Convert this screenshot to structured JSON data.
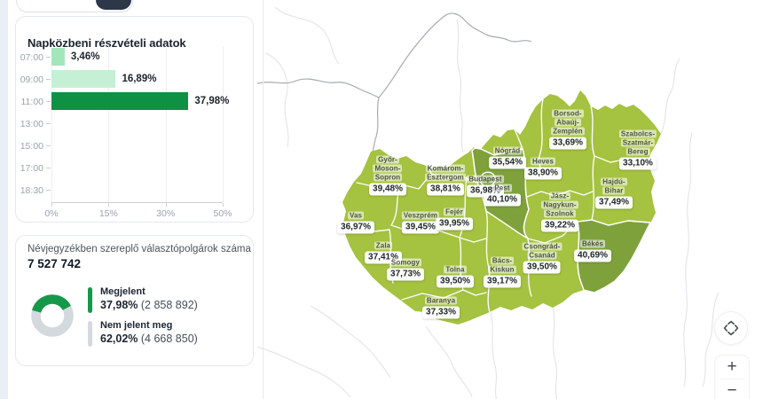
{
  "colors": {
    "accent_green": "#16984a",
    "donut_gray": "#d4d9dd",
    "map_county": "#a5c240",
    "map_county_dark": "#7ea13c",
    "map_border": "#ffffff"
  },
  "turnout_card": {
    "title": "Napközbeni részvételi adatok",
    "chart_data": {
      "type": "bar",
      "orientation": "horizontal",
      "title": "Napközbeni részvételi adatok",
      "categories": [
        "07:00",
        "09:00",
        "11:00",
        "13:00",
        "15:00",
        "17:00",
        "18:30"
      ],
      "values": [
        3.46,
        16.89,
        37.98,
        null,
        null,
        null,
        null
      ],
      "value_labels": [
        "3,46%",
        "16,89%",
        "37,98%",
        "",
        "",
        "",
        ""
      ],
      "bar_colors": [
        "#a3e6bc",
        "#c5f0d6",
        "#0e9144"
      ],
      "x_ticks": [
        "0%",
        "15%",
        "30%",
        "50%"
      ],
      "x_tick_values": [
        0,
        15,
        30,
        50
      ],
      "xlim": [
        0,
        50
      ],
      "grid": true
    }
  },
  "voters_card": {
    "title": "Névjegyzékben szereplő választópolgárok száma",
    "total": "7 527 742",
    "donut": {
      "type": "pie",
      "megjelent_pct": 37.98,
      "nem_jelent_meg_pct": 62.02
    },
    "legend": [
      {
        "label": "Megjelent",
        "pct": "37,98%",
        "count": "(2 858 892)",
        "color": "#16984a"
      },
      {
        "label": "Nem jelent meg",
        "pct": "62,02%",
        "count": "(4 668 850)",
        "color": "#d4d9dd"
      }
    ]
  },
  "map": {
    "type": "choropleth",
    "counties": [
      {
        "name": "Győr-Moson-Sopron",
        "name_lines": [
          "Győr-",
          "Moson-",
          "Sopron"
        ],
        "value": "39,48%",
        "dark": false
      },
      {
        "name": "Komárom-Esztergom",
        "name_lines": [
          "Komárom-",
          "Esztergom"
        ],
        "value": "38,81%",
        "dark": false
      },
      {
        "name": "Budapest",
        "name_lines": [
          "Budapest"
        ],
        "value": "36,98%",
        "dark": true
      },
      {
        "name": "Pest",
        "name_lines": [
          "Pest"
        ],
        "value": "40,10%",
        "dark": true
      },
      {
        "name": "Nógrád",
        "name_lines": [
          "Nógrád"
        ],
        "value": "35,54%",
        "dark": false
      },
      {
        "name": "Borsod-Abaúj-Zemplén",
        "name_lines": [
          "Borsod-",
          "Abaúj-",
          "Zemplén"
        ],
        "value": "33,69%",
        "dark": false
      },
      {
        "name": "Heves",
        "name_lines": [
          "Heves"
        ],
        "value": "38,90%",
        "dark": false
      },
      {
        "name": "Szabolcs-Szatmár-Bereg",
        "name_lines": [
          "Szabolcs-",
          "Szatmár-",
          "Bereg"
        ],
        "value": "33,10%",
        "dark": false
      },
      {
        "name": "Hajdú-Bihar",
        "name_lines": [
          "Hajdú-",
          "Bihar"
        ],
        "value": "37,49%",
        "dark": false
      },
      {
        "name": "Jász-Nagykun-Szolnok",
        "name_lines": [
          "Jász-",
          "Nagykun-",
          "Szolnok"
        ],
        "value": "39,22%",
        "dark": false
      },
      {
        "name": "Vas",
        "name_lines": [
          "Vas"
        ],
        "value": "36,97%",
        "dark": false
      },
      {
        "name": "Veszprém",
        "name_lines": [
          "Veszprém"
        ],
        "value": "39,45%",
        "dark": false
      },
      {
        "name": "Fejér",
        "name_lines": [
          "Fejér"
        ],
        "value": "39,95%",
        "dark": false
      },
      {
        "name": "Zala",
        "name_lines": [
          "Zala"
        ],
        "value": "37,41%",
        "dark": false
      },
      {
        "name": "Somogy",
        "name_lines": [
          "Somogy"
        ],
        "value": "37,73%",
        "dark": false
      },
      {
        "name": "Tolna",
        "name_lines": [
          "Tolna"
        ],
        "value": "39,50%",
        "dark": false
      },
      {
        "name": "Baranya",
        "name_lines": [
          "Baranya"
        ],
        "value": "37,33%",
        "dark": false
      },
      {
        "name": "Bács-Kiskun",
        "name_lines": [
          "Bács-",
          "Kiskun"
        ],
        "value": "39,17%",
        "dark": false
      },
      {
        "name": "Csongrád-Csanád",
        "name_lines": [
          "Csongrád-",
          "Csanád"
        ],
        "value": "39,50%",
        "dark": false
      },
      {
        "name": "Békés",
        "name_lines": [
          "Békés"
        ],
        "value": "40,69%",
        "dark": true
      }
    ],
    "controls": {
      "zoom_in": "+",
      "zoom_out": "−"
    }
  }
}
